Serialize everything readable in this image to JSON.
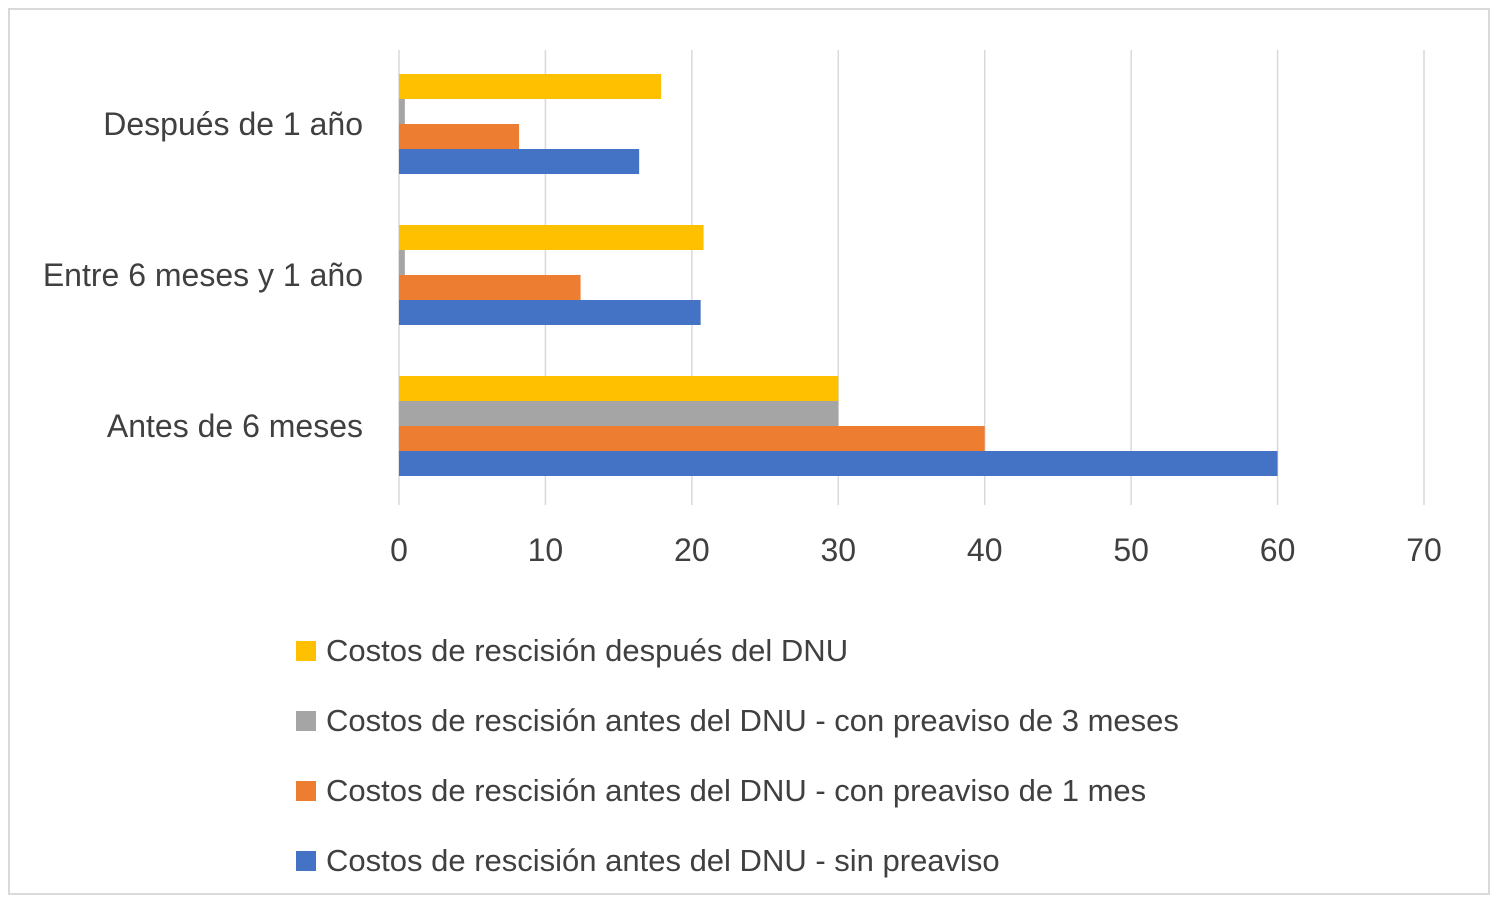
{
  "chart_data": {
    "type": "bar",
    "orientation": "horizontal",
    "categories": [
      "Antes de 6 meses",
      "Entre 6 meses y 1 año",
      "Después de 1 año"
    ],
    "series": [
      {
        "name": "Costos de rescisión antes del DNU - sin preaviso",
        "color": "#4472C4",
        "values": [
          60,
          20.6,
          16.4
        ]
      },
      {
        "name": "Costos de rescisión antes del DNU - con preaviso de 1 mes",
        "color": "#ED7D31",
        "values": [
          40,
          12.4,
          8.2
        ]
      },
      {
        "name": "Costos de rescisión antes del DNU - con preaviso de 3 meses",
        "color": "#A5A5A5",
        "values": [
          30,
          0.4,
          0.4
        ]
      },
      {
        "name": "Costos de rescisión después del DNU",
        "color": "#FFC000",
        "values": [
          30,
          20.8,
          17.9
        ]
      }
    ],
    "xlim": [
      0,
      70
    ],
    "ticks": [
      "0",
      "10",
      "20",
      "30",
      "40",
      "50",
      "60",
      "70"
    ],
    "grid": true,
    "legend": "bottom",
    "title": "",
    "xlabel": "",
    "ylabel": ""
  },
  "legend_order": [
    3,
    2,
    1,
    0
  ]
}
